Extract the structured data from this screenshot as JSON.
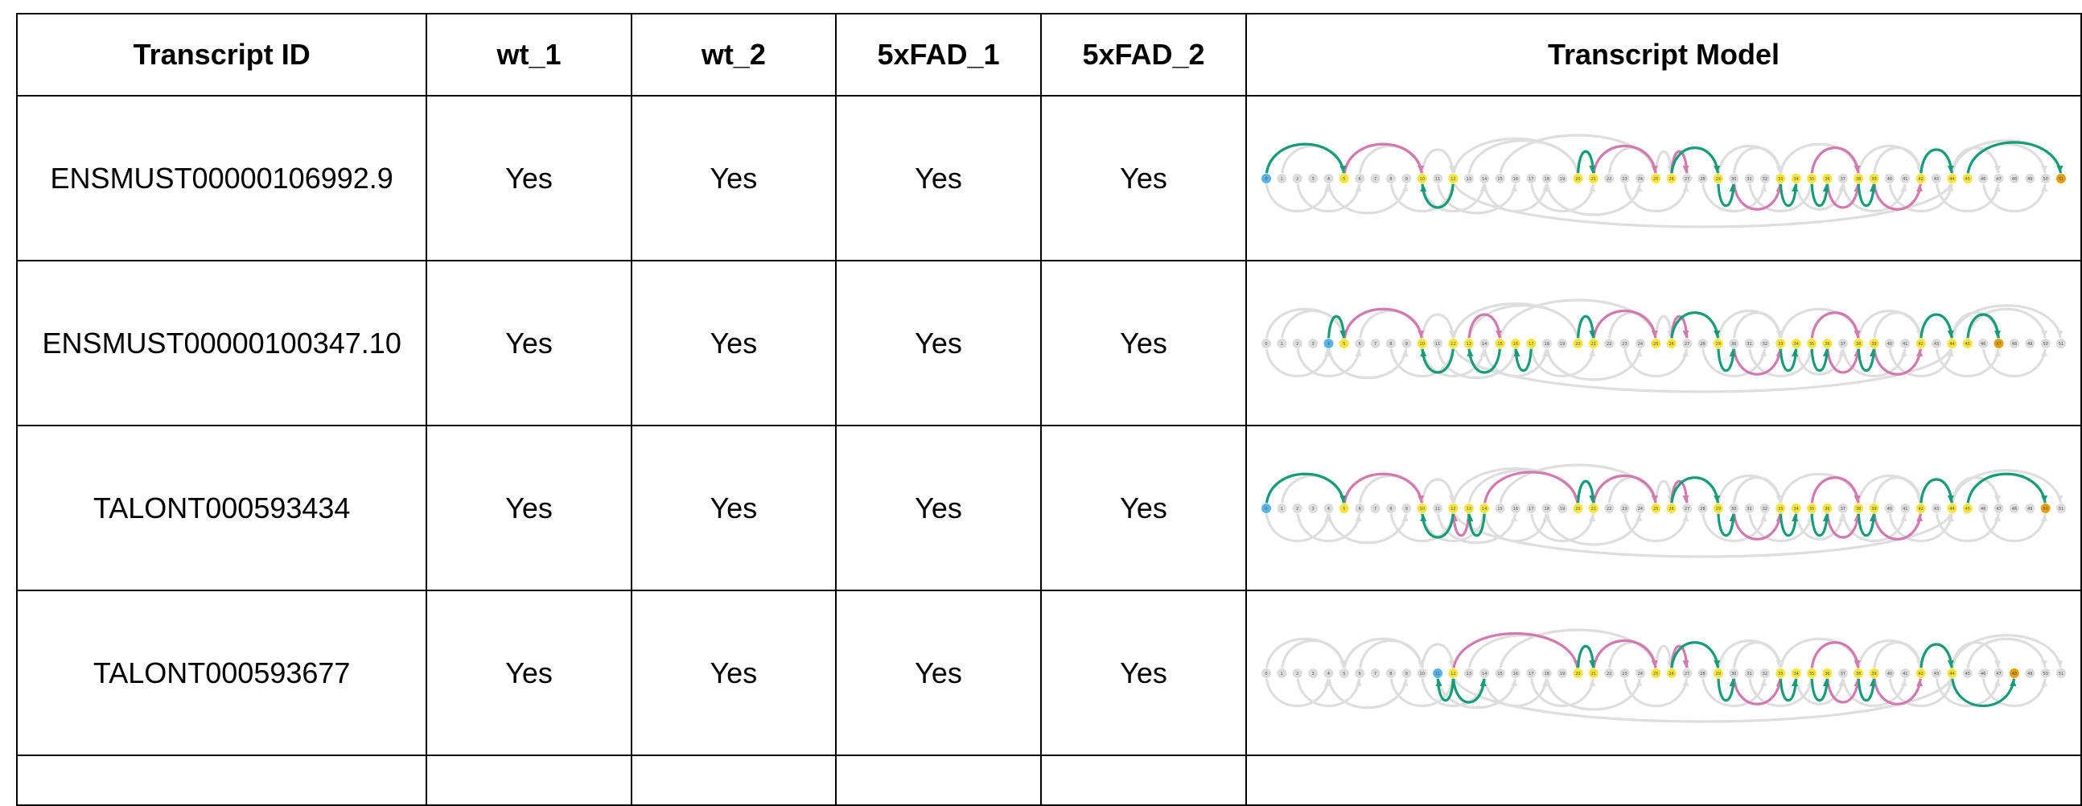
{
  "table": {
    "headers": [
      "Transcript ID",
      "wt_1",
      "wt_2",
      "5xFAD_1",
      "5xFAD_2",
      "Transcript Model"
    ],
    "rows": [
      {
        "id": "ENSMUST00000106992.9",
        "wt_1": "Yes",
        "wt_2": "Yes",
        "fad_1": "Yes",
        "fad_2": "Yes",
        "model": {
          "start": 0,
          "end": 51,
          "exons": [
            5,
            10,
            12,
            20,
            21,
            25,
            26,
            29,
            33,
            34,
            35,
            36,
            38,
            39,
            42,
            44,
            45
          ],
          "green_top": [
            [
              0,
              5
            ],
            [
              20,
              21
            ],
            [
              26,
              29
            ],
            [
              42,
              44
            ],
            [
              45,
              51
            ]
          ],
          "pink_top": [
            [
              5,
              10
            ],
            [
              21,
              25
            ],
            [
              26,
              27
            ],
            [
              35,
              38
            ]
          ],
          "green_bottom": [
            [
              12,
              10
            ],
            [
              29,
              30
            ],
            [
              33,
              34
            ],
            [
              35,
              36
            ],
            [
              38,
              39
            ]
          ],
          "pink_bottom": [
            [
              30,
              33
            ],
            [
              36,
              38
            ],
            [
              39,
              42
            ]
          ]
        }
      },
      {
        "id": "ENSMUST00000100347.10",
        "wt_1": "Yes",
        "wt_2": "Yes",
        "fad_1": "Yes",
        "fad_2": "Yes",
        "model": {
          "start": 4,
          "end": 47,
          "exons": [
            5,
            10,
            12,
            13,
            15,
            16,
            17,
            20,
            21,
            25,
            26,
            29,
            33,
            34,
            35,
            36,
            38,
            39,
            42,
            44,
            45
          ],
          "green_top": [
            [
              4,
              5
            ],
            [
              20,
              21
            ],
            [
              26,
              29
            ],
            [
              42,
              44
            ],
            [
              45,
              47
            ]
          ],
          "pink_top": [
            [
              5,
              10
            ],
            [
              13,
              15
            ],
            [
              21,
              25
            ],
            [
              26,
              27
            ],
            [
              35,
              38
            ]
          ],
          "green_bottom": [
            [
              12,
              10
            ],
            [
              15,
              13
            ],
            [
              17,
              16
            ],
            [
              29,
              30
            ],
            [
              33,
              34
            ],
            [
              35,
              36
            ],
            [
              38,
              39
            ]
          ],
          "pink_bottom": [
            [
              30,
              33
            ],
            [
              36,
              38
            ],
            [
              39,
              42
            ]
          ]
        }
      },
      {
        "id": "TALONT000593434",
        "wt_1": "Yes",
        "wt_2": "Yes",
        "fad_1": "Yes",
        "fad_2": "Yes",
        "model": {
          "start": 0,
          "end": 50,
          "exons": [
            5,
            10,
            12,
            13,
            14,
            20,
            21,
            25,
            26,
            29,
            33,
            34,
            35,
            36,
            38,
            39,
            42,
            44,
            45
          ],
          "green_top": [
            [
              0,
              5
            ],
            [
              20,
              21
            ],
            [
              26,
              29
            ],
            [
              42,
              44
            ],
            [
              45,
              50
            ]
          ],
          "pink_top": [
            [
              5,
              10
            ],
            [
              14,
              20
            ],
            [
              21,
              25
            ],
            [
              26,
              27
            ],
            [
              35,
              38
            ]
          ],
          "green_bottom": [
            [
              12,
              10
            ],
            [
              14,
              13
            ],
            [
              29,
              30
            ],
            [
              33,
              34
            ],
            [
              35,
              36
            ],
            [
              38,
              39
            ]
          ],
          "pink_bottom": [
            [
              13,
              12
            ],
            [
              30,
              33
            ],
            [
              36,
              38
            ],
            [
              39,
              42
            ]
          ]
        }
      },
      {
        "id": "TALONT000593677",
        "wt_1": "Yes",
        "wt_2": "Yes",
        "fad_1": "Yes",
        "fad_2": "Yes",
        "model": {
          "start": 11,
          "end": 48,
          "exons": [
            12,
            20,
            21,
            25,
            26,
            29,
            33,
            34,
            35,
            36,
            38,
            39,
            42,
            44
          ],
          "green_top": [
            [
              20,
              21
            ],
            [
              26,
              29
            ],
            [
              42,
              44
            ]
          ],
          "pink_top": [
            [
              12,
              20
            ],
            [
              21,
              25
            ],
            [
              26,
              27
            ],
            [
              35,
              38
            ]
          ],
          "green_bottom": [
            [
              12,
              11
            ],
            [
              12,
              14
            ],
            [
              29,
              30
            ],
            [
              33,
              34
            ],
            [
              35,
              36
            ],
            [
              38,
              39
            ],
            [
              44,
              48
            ]
          ],
          "pink_bottom": [
            [
              30,
              33
            ],
            [
              36,
              38
            ],
            [
              39,
              42
            ]
          ]
        }
      }
    ]
  },
  "colors": {
    "green": "#139c77",
    "pink": "#d279ad",
    "gray_arc": "#dedede",
    "node_gray": "#dcdcdc",
    "exon_yellow": "#f7e53c",
    "start_blue": "#56b4e9",
    "end_orange": "#e69f00"
  }
}
